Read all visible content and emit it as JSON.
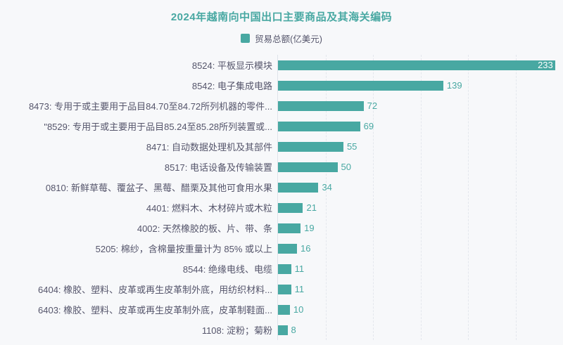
{
  "page": {
    "background": "#f7f8fa"
  },
  "colors": {
    "accent_teal": "#48a8a2",
    "text_dark": "#55556b",
    "gridline": "#e4e7ed",
    "axis_line": "#dfe3e9",
    "inside_value_label": "#ffffff"
  },
  "chart_data": {
    "type": "bar",
    "orientation": "horizontal",
    "title": "2024年越南向中国出口主要商品及其海关编码",
    "legend": [
      "贸易总额(亿美元)"
    ],
    "unit": "亿美元",
    "categories": [
      "8524: 平板显示模块",
      "8542: 电子集成电路",
      "8473: 专用于或主要用于品目84.70至84.72所列机器的零件...",
      "\"8529: 专用于或主要用于品目85.24至85.28所列装置或...",
      "8471: 自动数据处理机及其部件",
      "8517: 电话设备及传输装置",
      "0810: 新鲜草莓、覆盆子、黑莓、醋栗及其他可食用水果",
      "4401: 燃料木、木材碎片或木粒",
      "4002: 天然橡胶的板、片、带、条",
      "5205: 棉纱，含棉量按重量计为 85% 或以上",
      "8544: 绝缘电线、电缆",
      "6404: 橡胶、塑料、皮革或再生皮革制外底，用纺织材料...",
      "6403: 橡胶、塑料、皮革或再生皮革制外底，皮革制鞋面...",
      "1108: 淀粉；菊粉"
    ],
    "values": [
      233,
      139,
      72,
      69,
      55,
      50,
      34,
      21,
      19,
      16,
      11,
      11,
      10,
      8
    ],
    "xlim": [
      0,
      240
    ],
    "gridline_values": [
      40,
      80,
      120,
      160,
      200
    ],
    "grid_style": "dashed",
    "legend_position": "top-center",
    "value_labels": "shown at bar end; largest bar label rendered inside bar in white"
  }
}
